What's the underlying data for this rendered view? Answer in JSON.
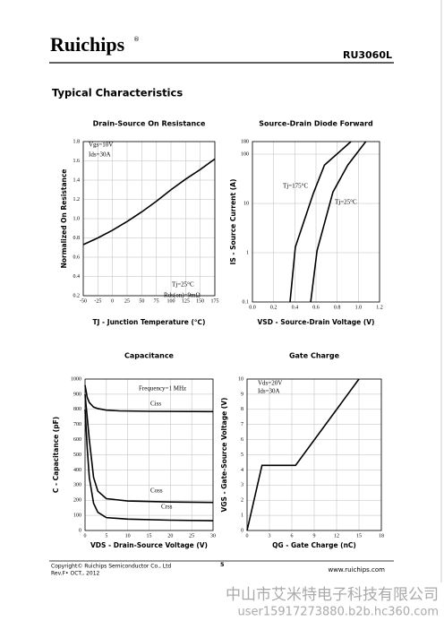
{
  "header": {
    "logo": "Ruichips",
    "registered": "®",
    "part": "RU3060L",
    "section": "Typical Characteristics"
  },
  "chart_data": [
    {
      "type": "line",
      "title": "Drain-Source On Resistance",
      "xlabel": "TJ - Junction Temperature (℃)",
      "ylabel": "Normalized On Resistance",
      "x": [
        -50,
        -25,
        0,
        25,
        50,
        75,
        100,
        125,
        150,
        175
      ],
      "values": [
        0.73,
        0.8,
        0.88,
        0.97,
        1.07,
        1.18,
        1.3,
        1.41,
        1.51,
        1.62
      ],
      "color": "#000000",
      "xlim": [
        -50,
        175
      ],
      "xticks": [
        -50,
        -25,
        0,
        25,
        50,
        75,
        100,
        125,
        150,
        175
      ],
      "ylim": [
        0.2,
        1.8
      ],
      "yticks": [
        0.2,
        0.4,
        0.6,
        0.8,
        {
          "value": 1,
          "label": "1.0"
        },
        1.2,
        1.4,
        1.6,
        1.8
      ],
      "grid": true,
      "annotations": [
        "Vgs=10V",
        "Ids=30A",
        "Tj=25°C",
        "Rds(on)=9mΩ"
      ]
    },
    {
      "type": "line",
      "title": "Source-Drain Diode Forward",
      "xlabel": "VSD - Source-Drain Voltage (V)",
      "ylabel": "IS - Source Current (A)",
      "series": [
        {
          "name": "Tj=175°C",
          "color": "#000000",
          "x": [
            0.355,
            0.405,
            0.575,
            0.68,
            0.93
          ],
          "values": [
            0.1,
            1.3,
            16,
            60,
            180
          ]
        },
        {
          "name": "Tj=25°C",
          "color": "#000000",
          "x": [
            0.55,
            0.61,
            0.76,
            0.9,
            1.07
          ],
          "values": [
            0.1,
            1.1,
            17,
            60,
            180
          ]
        }
      ],
      "xlim": [
        0,
        1.2
      ],
      "xticks": [
        {
          "value": 0,
          "label": "0.0"
        },
        0.2,
        0.4,
        0.6,
        0.8,
        {
          "value": 1,
          "label": "1.0"
        },
        1.2
      ],
      "ylim": [
        0.1,
        180
      ],
      "yticks": [
        0.1,
        1,
        10,
        100,
        180
      ],
      "log_y": true,
      "grid": true
    },
    {
      "type": "line",
      "title": "Capacitance",
      "xlabel": "VDS - Drain-Source Voltage (V)",
      "ylabel": "C - Capacitance (pF)",
      "series": [
        {
          "name": "Ciss",
          "color": "#000000",
          "x": [
            0,
            0.5,
            1,
            2,
            3,
            5,
            8,
            15,
            30
          ],
          "values": [
            960,
            880,
            845,
            815,
            805,
            795,
            790,
            787,
            785
          ]
        },
        {
          "name": "Coss",
          "color": "#000000",
          "x": [
            0,
            0.5,
            1,
            2,
            3,
            5,
            10,
            20,
            30
          ],
          "values": [
            900,
            750,
            600,
            350,
            260,
            210,
            195,
            188,
            185
          ]
        },
        {
          "name": "Crss",
          "color": "#000000",
          "x": [
            0,
            0.5,
            1,
            2,
            3,
            5,
            10,
            20,
            30
          ],
          "values": [
            800,
            550,
            350,
            180,
            120,
            85,
            75,
            68,
            65
          ]
        }
      ],
      "xlim": [
        0,
        30
      ],
      "xticks": [
        0,
        5,
        10,
        15,
        20,
        25,
        30
      ],
      "ylim": [
        0,
        1000
      ],
      "yticks": [
        0,
        100,
        200,
        300,
        400,
        500,
        600,
        700,
        800,
        900,
        1000
      ],
      "grid": true,
      "annotations": [
        "Frequency=1 MHz"
      ]
    },
    {
      "type": "line",
      "title": "Gate Charge",
      "xlabel": "QG - Gate Charge (nC)",
      "ylabel": "VGS - Gate-Source Voltage (V)",
      "x": [
        0,
        2,
        6.5,
        15
      ],
      "values": [
        0,
        4.3,
        4.3,
        10
      ],
      "color": "#000000",
      "xlim": [
        0,
        18
      ],
      "xticks": [
        0,
        3,
        6,
        9,
        12,
        15,
        18
      ],
      "ylim": [
        0,
        10
      ],
      "yticks": [
        0,
        1,
        2,
        3,
        4,
        5,
        6,
        7,
        8,
        9,
        10
      ],
      "grid": true,
      "annotations": [
        "Vds=20V",
        "Ids=30A"
      ]
    }
  ],
  "footer": {
    "copyright": "Copyright© Ruichips Semiconductor Co., Ltd",
    "revision": "Rev.F• OCT., 2012",
    "page": "5",
    "website": "www.ruichips.com"
  },
  "watermark": {
    "company": "中山市艾米特电子科技有限公司",
    "url": "user15917273880.b2b.hc360.com"
  }
}
